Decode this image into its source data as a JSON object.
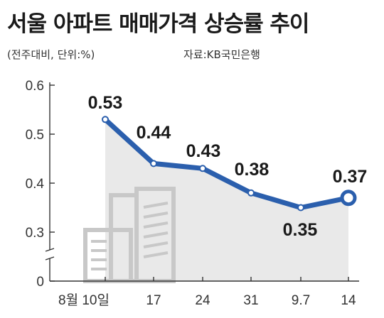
{
  "title": "서울 아파트 매매가격 상승률 추이",
  "subtitle": "(전주대비, 단위:%)",
  "source": "자료:KB국민은행",
  "colors": {
    "line": "#2b5fad",
    "area": "#e9e9e9",
    "axis": "#333333",
    "building": "#c8c8c8"
  },
  "icons": [
    "building-icon"
  ],
  "chart_data": {
    "type": "line",
    "title": "서울 아파트 매매가격 상승률 추이",
    "categories": [
      "8월 10일",
      "17",
      "24",
      "31",
      "9.7",
      "14"
    ],
    "values": [
      0.53,
      0.44,
      0.43,
      0.38,
      0.35,
      0.37
    ],
    "value_labels": [
      "0.53",
      "0.44",
      "0.43",
      "0.38",
      "0.35",
      "0.37"
    ],
    "y_ticks": [
      "0.6",
      "0.5",
      "0.4",
      "0.3",
      "0"
    ],
    "ylim": [
      0.25,
      0.6
    ],
    "axis_break": true,
    "grid": false,
    "legend": "none"
  }
}
